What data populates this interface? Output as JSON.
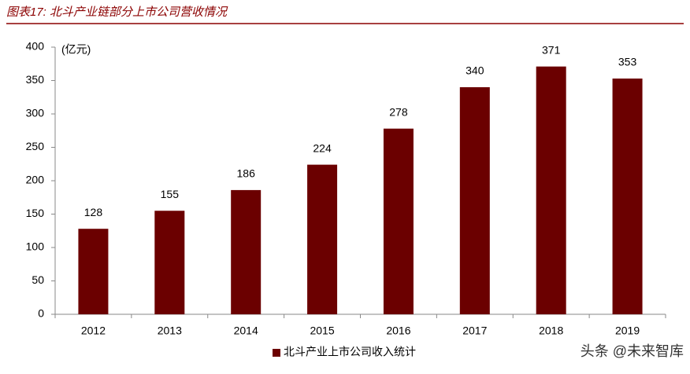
{
  "chart_data": {
    "type": "bar",
    "title": "图表17: 北斗产业链部分上市公司营收情况",
    "y_label": "(亿元)",
    "categories": [
      "2012",
      "2013",
      "2014",
      "2015",
      "2016",
      "2017",
      "2018",
      "2019"
    ],
    "series": [
      {
        "name": "北斗产业上市公司收入统计",
        "color": "#6b0000",
        "values": [
          128,
          155,
          186,
          224,
          278,
          340,
          371,
          353
        ]
      }
    ],
    "ylim": [
      0,
      400
    ],
    "yticks": [
      0,
      50,
      100,
      150,
      200,
      250,
      300,
      350,
      400
    ],
    "legend": "bottom",
    "watermark": "头条 @未来智库"
  }
}
